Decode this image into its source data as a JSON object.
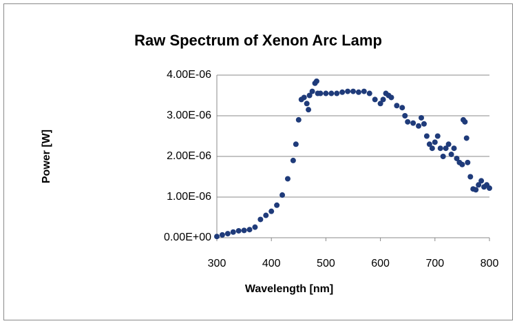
{
  "chart_data": {
    "type": "scatter",
    "title": "Raw Spectrum of Xenon Arc Lamp",
    "x_label": "Wavelength [nm]",
    "y_label": "Power [W]",
    "xlim": [
      300,
      800
    ],
    "xticks": [
      300,
      400,
      500,
      600,
      700,
      800
    ],
    "ylim": [
      0,
      4e-06
    ],
    "yticks": [
      {
        "value": 0,
        "label": "0.00E+00"
      },
      {
        "value": 1e-06,
        "label": "1.00E-06"
      },
      {
        "value": 2e-06,
        "label": "2.00E-06"
      },
      {
        "value": 3e-06,
        "label": "3.00E-06"
      },
      {
        "value": 4e-06,
        "label": "4.00E-06"
      }
    ],
    "grid": true,
    "series": [
      {
        "name": "Raw Spectrum",
        "color": "#1f3b7a",
        "x": [
          300,
          310,
          320,
          330,
          340,
          350,
          360,
          370,
          380,
          390,
          400,
          410,
          420,
          430,
          440,
          445,
          450,
          455,
          460,
          465,
          468,
          470,
          475,
          480,
          483,
          485,
          490,
          500,
          510,
          520,
          530,
          540,
          550,
          560,
          570,
          580,
          590,
          600,
          605,
          610,
          615,
          620,
          630,
          640,
          645,
          650,
          660,
          670,
          675,
          680,
          685,
          690,
          695,
          700,
          705,
          710,
          715,
          720,
          725,
          730,
          735,
          740,
          745,
          750,
          752,
          755,
          758,
          760,
          765,
          770,
          775,
          780,
          785,
          790,
          795,
          800
        ],
        "values": [
          3e-08,
          7e-08,
          1e-07,
          1.4e-07,
          1.7e-07,
          1.8e-07,
          2e-07,
          2.6e-07,
          4.5e-07,
          5.5e-07,
          6.5e-07,
          8e-07,
          1.05e-06,
          1.45e-06,
          1.9e-06,
          2.3e-06,
          2.9e-06,
          3.4e-06,
          3.45e-06,
          3.3e-06,
          3.15e-06,
          3.5e-06,
          3.6e-06,
          3.8e-06,
          3.85e-06,
          3.55e-06,
          3.55e-06,
          3.55e-06,
          3.55e-06,
          3.55e-06,
          3.58e-06,
          3.6e-06,
          3.6e-06,
          3.58e-06,
          3.6e-06,
          3.55e-06,
          3.4e-06,
          3.3e-06,
          3.4e-06,
          3.55e-06,
          3.5e-06,
          3.45e-06,
          3.25e-06,
          3.2e-06,
          3e-06,
          2.85e-06,
          2.82e-06,
          2.75e-06,
          2.95e-06,
          2.8e-06,
          2.5e-06,
          2.3e-06,
          2.2e-06,
          2.35e-06,
          2.5e-06,
          2.2e-06,
          2e-06,
          2.2e-06,
          2.3e-06,
          2.05e-06,
          2.2e-06,
          1.95e-06,
          1.85e-06,
          1.8e-06,
          2.9e-06,
          2.85e-06,
          2.45e-06,
          1.85e-06,
          1.5e-06,
          1.2e-06,
          1.18e-06,
          1.3e-06,
          1.4e-06,
          1.25e-06,
          1.3e-06,
          1.22e-06
        ]
      }
    ]
  }
}
